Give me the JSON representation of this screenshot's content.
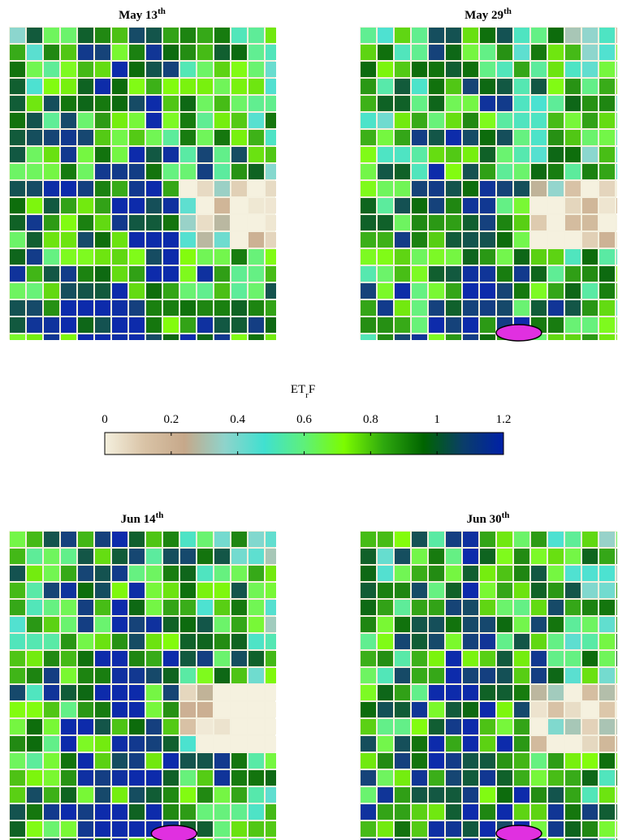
{
  "panels": [
    {
      "title": "May 13",
      "title_sup": "th"
    },
    {
      "title": "May 29",
      "title_sup": "th"
    },
    {
      "title": "Jun 14",
      "title_sup": "th"
    },
    {
      "title": "Jun 30",
      "title_sup": "th"
    }
  ],
  "colorbar": {
    "label": "ET",
    "label_sub": "r",
    "label_suffix": "F",
    "lim": [
      0,
      1.2
    ],
    "ticks": [
      0,
      0.2,
      0.4,
      0.6,
      0.8,
      1,
      1.2
    ],
    "colors": [
      "#f4f0de",
      "#d9c3a6",
      "#c6a88a",
      "#8fd3cb",
      "#40e0d0",
      "#5ef07a",
      "#7cfc00",
      "#2ea80e",
      "#006400",
      "#0a3d6a",
      "#0020a8"
    ]
  }
}
